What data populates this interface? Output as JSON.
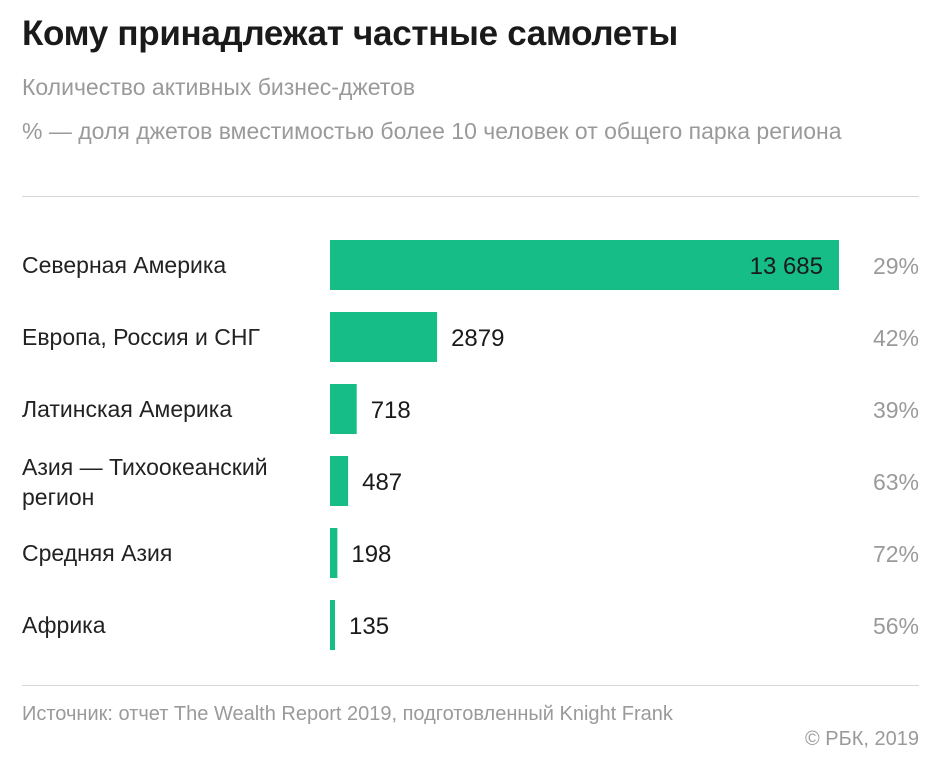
{
  "title": "Кому принадлежат частные самолеты",
  "subtitle": "Количество активных бизнес-джетов",
  "note": "% — доля джетов вместимостью более 10 человек от общего парка региона",
  "source": "Источник: отчет The Wealth Report 2019, подготовленный Knight Frank",
  "copyright": "© РБК, 2019",
  "colors": {
    "bar": "#16bd87",
    "label": "#222222",
    "value": "#1a1a1a",
    "share": "#9a9a9a"
  },
  "chart_data": {
    "type": "bar",
    "orientation": "horizontal",
    "title": "Кому принадлежат частные самолеты",
    "categories": [
      [
        "Северная Америка"
      ],
      [
        "Европа, Россия и СНГ"
      ],
      [
        "Латинская Америка"
      ],
      [
        "Азия — Тихоокеанский",
        "регион"
      ],
      [
        "Средняя Азия"
      ],
      [
        "Африка"
      ]
    ],
    "values": [
      13685,
      2879,
      718,
      487,
      198,
      135
    ],
    "value_labels": [
      "13 685",
      "2879",
      "718",
      "487",
      "198",
      "135"
    ],
    "share_percent": [
      29,
      42,
      39,
      63,
      72,
      56
    ],
    "share_labels": [
      "29%",
      "42%",
      "39%",
      "63%",
      "72%",
      "56%"
    ],
    "xlim": [
      0,
      13685
    ],
    "grid": false,
    "legend": "none"
  }
}
